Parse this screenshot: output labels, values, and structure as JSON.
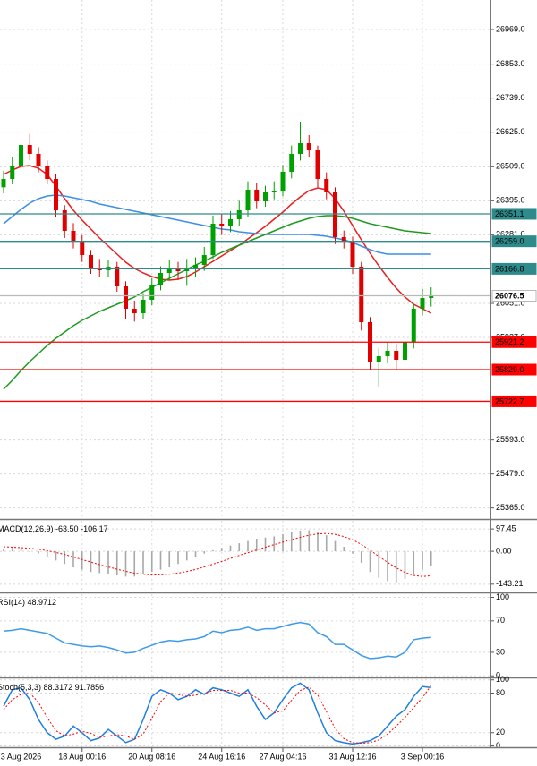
{
  "chart_data": [
    {
      "type": "candlestick",
      "categories": [
        null,
        null,
        "3 Aug 2026",
        null,
        null,
        null,
        null,
        null,
        null,
        "18 Aug 00:16",
        null,
        null,
        null,
        null,
        null,
        null,
        null,
        "20 Aug 08:16",
        null,
        null,
        null,
        null,
        null,
        null,
        null,
        "24 Aug 16:16",
        null,
        null,
        null,
        null,
        null,
        null,
        "27 Aug 04:16",
        null,
        null,
        null,
        null,
        null,
        null,
        null,
        "31 Aug 12:16",
        null,
        null,
        null,
        null,
        null,
        null,
        null,
        "3 Sep 00:16",
        null
      ],
      "open": [
        26440,
        26468,
        26513,
        26582,
        26552,
        26513,
        26468,
        26363,
        26294,
        26258,
        26213,
        26168,
        26162,
        26174,
        26108,
        26033,
        26018,
        26063,
        26114,
        26153,
        26168,
        26159,
        26168,
        26180,
        26213,
        26318,
        26312,
        26333,
        26363,
        26432,
        26393,
        26423,
        26429,
        26492,
        26552,
        26588,
        26564,
        26468,
        26423,
        26273,
        26258,
        26174,
        25988,
        25853,
        25874,
        25892,
        25862,
        25922,
        26033,
        26069
      ],
      "high": [
        26495,
        26540,
        26610,
        26620,
        26575,
        26530,
        26485,
        26380,
        26320,
        26280,
        26230,
        26200,
        26195,
        26190,
        26125,
        26060,
        26085,
        26135,
        26175,
        26195,
        26190,
        26200,
        26205,
        26240,
        26345,
        26350,
        26360,
        26395,
        26460,
        26455,
        26445,
        26460,
        26515,
        26580,
        26660,
        26615,
        26580,
        26490,
        26440,
        26295,
        26275,
        26190,
        26005,
        25900,
        25920,
        25915,
        25945,
        26050,
        26100,
        26105
      ],
      "low": [
        26420,
        26450,
        26500,
        26530,
        26490,
        26450,
        26340,
        26270,
        26235,
        26190,
        26150,
        26140,
        26140,
        26090,
        26000,
        25990,
        26000,
        26045,
        26095,
        26130,
        26130,
        26110,
        26140,
        26160,
        26200,
        26280,
        26290,
        26310,
        26340,
        26370,
        26375,
        26400,
        26410,
        26470,
        26530,
        26540,
        26440,
        26400,
        26250,
        26235,
        26150,
        25960,
        25830,
        25770,
        25850,
        25830,
        25820,
        25900,
        26010,
        26040
      ],
      "close": [
        26468,
        26513,
        26582,
        26552,
        26513,
        26468,
        26363,
        26294,
        26258,
        26213,
        26168,
        26162,
        26174,
        26108,
        26033,
        26018,
        26063,
        26114,
        26153,
        26168,
        26159,
        26168,
        26180,
        26213,
        26318,
        26312,
        26333,
        26363,
        26432,
        26393,
        26423,
        26429,
        26492,
        26552,
        26588,
        26564,
        26468,
        26423,
        26273,
        26258,
        26174,
        25988,
        25853,
        25874,
        25892,
        25862,
        25922,
        26033,
        26069,
        26076.5
      ],
      "up_color": "#00a000",
      "down_color": "#e00000",
      "lines": [
        {
          "color": "#ee1c1c",
          "values": [
            26483,
            26498,
            26510,
            26513,
            26504,
            26483,
            26444,
            26402,
            26363,
            26330,
            26300,
            26270,
            26243,
            26216,
            26189,
            26168,
            26153,
            26141,
            26132,
            26129,
            26132,
            26141,
            26156,
            26174,
            26192,
            26210,
            26228,
            26246,
            26267,
            26288,
            26309,
            26333,
            26357,
            26384,
            26408,
            26429,
            26438,
            26432,
            26402,
            26360,
            26312,
            26264,
            26219,
            26177,
            26138,
            26102,
            26072,
            26048,
            26033,
            26018
          ]
        },
        {
          "color": "#3d8ee6",
          "values": [
            26318,
            26342,
            26366,
            26387,
            26402,
            26411,
            26414,
            26411,
            26405,
            26399,
            26393,
            26384,
            26378,
            26372,
            26366,
            26360,
            26354,
            26348,
            26342,
            26336,
            26330,
            26324,
            26318,
            26312,
            26306,
            26300,
            26297,
            26291,
            26288,
            26285,
            26282,
            26282,
            26282,
            26282,
            26282,
            26282,
            26279,
            26276,
            26270,
            26264,
            26255,
            26243,
            26231,
            26222,
            26216,
            26216,
            26216,
            26216,
            26216,
            26216
          ]
        },
        {
          "color": "#1f9a1f",
          "values": [
            25763,
            25793,
            25826,
            25856,
            25883,
            25910,
            25934,
            25955,
            25976,
            25994,
            26009,
            26024,
            26036,
            26048,
            26060,
            26072,
            26090,
            26105,
            26120,
            26135,
            26150,
            26165,
            26180,
            26192,
            26207,
            26222,
            26234,
            26246,
            26258,
            26270,
            26282,
            26294,
            26306,
            26318,
            26327,
            26336,
            26342,
            26345,
            26345,
            26342,
            26336,
            26327,
            26318,
            26312,
            26306,
            26300,
            26294,
            26291,
            26288,
            26285
          ]
        }
      ],
      "levels": [
        {
          "value": 26351.1,
          "color": "#2e8b8b",
          "text_color": "#ffffff"
        },
        {
          "value": 26259,
          "label": "26259.0",
          "color": "#2e8b8b",
          "text_color": "#ffffff"
        },
        {
          "value": 26166.8,
          "color": "#2e8b8b",
          "text_color": "#ffffff"
        },
        {
          "value": 26076.5,
          "color": "#b8b8b8",
          "text_color": "#000000"
        },
        {
          "value": 25921.2,
          "color": "#ff0000",
          "text_color": "#ffffff"
        },
        {
          "value": 25829,
          "label": "25829.0",
          "color": "#ff0000",
          "text_color": "#ffffff"
        },
        {
          "value": 25722.7,
          "color": "#ff0000",
          "text_color": "#ffffff"
        }
      ],
      "ylim": [
        25328,
        27068
      ],
      "yticks": [
        {
          "value": 26969,
          "label": "26969.0"
        },
        {
          "value": 26853,
          "label": "26853.0"
        },
        {
          "value": 26739,
          "label": "26739.0"
        },
        {
          "value": 26625,
          "label": "26625.0"
        },
        {
          "value": 26509,
          "label": "26509.0"
        },
        {
          "value": 26395,
          "label": "26395.0"
        },
        {
          "value": 26281,
          "label": "26281.0"
        },
        {
          "value": 26051,
          "label": "26051.0"
        },
        {
          "value": 25937,
          "label": "25937.0"
        },
        {
          "value": 25593,
          "label": "25593.0"
        },
        {
          "value": 25479,
          "label": "25479.0"
        },
        {
          "value": 25365,
          "label": "25365.0"
        }
      ],
      "grid": true
    },
    {
      "type": "indicator",
      "title": "MACD(12,26,9)",
      "series": [
        {
          "kind": "bar",
          "color": "#a8a8a8",
          "last_label": "-63.50",
          "values": [
            10,
            15,
            10,
            0,
            -10,
            -25,
            -40,
            -55,
            -70,
            -80,
            -90,
            -95,
            -100,
            -105,
            -110,
            -110,
            -100,
            -90,
            -80,
            -70,
            -55,
            -40,
            -25,
            -10,
            5,
            15,
            25,
            35,
            45,
            55,
            60,
            65,
            75,
            85,
            90,
            92,
            85,
            70,
            45,
            20,
            -10,
            -50,
            -90,
            -115,
            -130,
            -135,
            -120,
            -100,
            -80,
            -63.5
          ]
        },
        {
          "kind": "line",
          "dash": true,
          "color": "#ff0000",
          "last_label": "-106.17",
          "values": [
            20,
            18,
            16,
            13,
            9,
            3,
            -5,
            -14,
            -25,
            -36,
            -47,
            -58,
            -68,
            -78,
            -87,
            -95,
            -100,
            -103,
            -103,
            -100,
            -95,
            -88,
            -79,
            -68,
            -56,
            -44,
            -31,
            -18,
            -6,
            6,
            18,
            29,
            40,
            51,
            61,
            70,
            76,
            78,
            74,
            64,
            50,
            30,
            5,
            -22,
            -48,
            -72,
            -92,
            -105,
            -110,
            -106.17
          ]
        }
      ],
      "ylim": [
        -179,
        133
      ],
      "yticks": [
        97.45,
        {
          "value": 0,
          "label": "0.00"
        },
        -143.21
      ],
      "grid": true
    },
    {
      "type": "indicator",
      "title": "RSI(14)",
      "series": [
        {
          "kind": "line",
          "color": "#3d9be9",
          "values": [
            57,
            58,
            60,
            58,
            56,
            54,
            48,
            42,
            40,
            38,
            37,
            38,
            36,
            33,
            29,
            30,
            35,
            39,
            43,
            45,
            44,
            46,
            47,
            50,
            57,
            55,
            58,
            59,
            62,
            58,
            60,
            60,
            63,
            66,
            68,
            66,
            55,
            50,
            40,
            40,
            33,
            26,
            22,
            23,
            25,
            24,
            30,
            46,
            48,
            48.9712
          ]
        }
      ],
      "ylim": [
        -2,
        104
      ],
      "yticks": [
        100,
        70,
        30,
        0
      ],
      "grid": true
    },
    {
      "type": "indicator",
      "title": "Stoch(5,3,3)",
      "series": [
        {
          "kind": "line",
          "color": "#1e7ee0",
          "values": [
            60,
            85,
            88,
            70,
            40,
            20,
            10,
            15,
            30,
            20,
            8,
            12,
            25,
            15,
            5,
            10,
            40,
            75,
            85,
            80,
            70,
            75,
            85,
            78,
            88,
            85,
            80,
            75,
            85,
            60,
            40,
            50,
            70,
            88,
            95,
            85,
            50,
            20,
            8,
            5,
            3,
            5,
            8,
            15,
            30,
            45,
            55,
            75,
            90,
            88.3172
          ]
        },
        {
          "kind": "line",
          "dash": true,
          "color": "#ff0000",
          "values": [
            55,
            70,
            78,
            80,
            66,
            43,
            23,
            15,
            18,
            22,
            19,
            13,
            15,
            17,
            15,
            10,
            18,
            42,
            67,
            80,
            78,
            75,
            77,
            79,
            84,
            84,
            84,
            80,
            80,
            73,
            62,
            50,
            53,
            69,
            84,
            89,
            77,
            52,
            26,
            11,
            5,
            4,
            5,
            9,
            18,
            30,
            43,
            58,
            73,
            91.7856
          ]
        }
      ],
      "ylim": [
        -2,
        101
      ],
      "yticks": [
        100,
        80,
        20,
        0
      ],
      "grid": true
    }
  ]
}
